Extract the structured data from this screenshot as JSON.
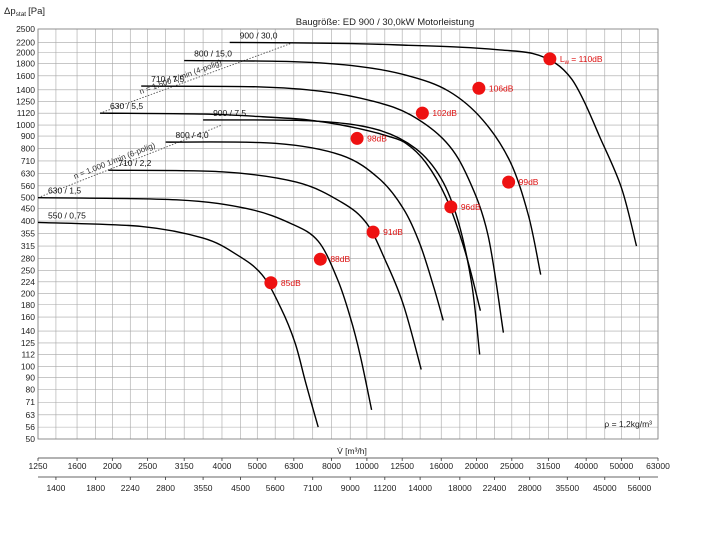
{
  "chart_data": {
    "type": "line",
    "title": "Baugröße: ED 900 / 30,0kW Motorleistung",
    "ylabel_main": "Δp",
    "ylabel_sub": "stat",
    "ylabel_unit": "[Pa]",
    "xlabel": "V̇ [m³/h]",
    "density_note": "ρ = 1,2kg/m³",
    "y_scale": "log",
    "x_scale": "log",
    "ylim": [
      50,
      2500
    ],
    "xlim": [
      1250,
      63000
    ],
    "grid": true,
    "y_ticks": [
      "2500",
      "2200",
      "2000",
      "1800",
      "1600",
      "1400",
      "1250",
      "1120",
      "1000",
      "900",
      "800",
      "710",
      "630",
      "560",
      "500",
      "450",
      "400",
      "355",
      "315",
      "280",
      "250",
      "224",
      "200",
      "180",
      "160",
      "140",
      "125",
      "112",
      "100",
      "90",
      "80",
      "71",
      "63",
      "56",
      "50"
    ],
    "x_ticks_top": [
      "1250",
      "1600",
      "2000",
      "2500",
      "3150",
      "4000",
      "5000",
      "6300",
      "8000",
      "10000",
      "12500",
      "16000",
      "20000",
      "25000",
      "31500",
      "40000",
      "50000",
      "63000"
    ],
    "x_ticks_bottom": [
      "1400",
      "1800",
      "2240",
      "2800",
      "3550",
      "4500",
      "5600",
      "7100",
      "9000",
      "11200",
      "14000",
      "18000",
      "22400",
      "28000",
      "35500",
      "45000",
      "56000"
    ],
    "speed_lines": [
      {
        "label": "n = 1.500 1/min (4-polig)",
        "x": [
          1850,
          6300
        ],
        "y": [
          1120,
          2200
        ]
      },
      {
        "label": "n = 1.000 1/min (6-polig)",
        "x": [
          1250,
          4000
        ],
        "y": [
          500,
          1000
        ]
      }
    ],
    "series": [
      {
        "name": "550 / 0,75",
        "x": [
          1250,
          2400,
          3550,
          4400,
          5150,
          5800,
          6350,
          6800,
          7350
        ],
        "y": [
          395,
          380,
          340,
          290,
          240,
          175,
          125,
          85,
          56
        ]
      },
      {
        "name": "630 / 1,5",
        "x": [
          1250,
          3000,
          4700,
          6200,
          7350,
          8300,
          9000,
          9600,
          10300
        ],
        "y": [
          500,
          490,
          450,
          390,
          330,
          230,
          160,
          110,
          66
        ]
      },
      {
        "name": "710 / 2,2",
        "x": [
          1950,
          4000,
          6400,
          8500,
          10000,
          11300,
          12600,
          14100
        ],
        "y": [
          650,
          640,
          580,
          480,
          390,
          270,
          180,
          97
        ]
      },
      {
        "name": "800 / 4,0",
        "x": [
          2800,
          5600,
          8500,
          10800,
          12600,
          14000,
          15300,
          16200
        ],
        "y": [
          850,
          840,
          750,
          600,
          450,
          320,
          210,
          155
        ]
      },
      {
        "name": "900 / 7,5",
        "x": [
          3550,
          7100,
          10600,
          13600,
          16000,
          17800,
          19400,
          20400
        ],
        "y": [
          1050,
          1040,
          960,
          800,
          600,
          400,
          220,
          112
        ]
      },
      {
        "name": "630 / 5,5",
        "x": [
          1850,
          3550,
          5300,
          6900,
          8500,
          10000,
          11400,
          12800,
          14500,
          16500,
          18600,
          20500
        ],
        "y": [
          1120,
          1110,
          1080,
          1050,
          1000,
          950,
          900,
          840,
          700,
          500,
          300,
          170
        ]
      },
      {
        "name": "710 / 7,5",
        "x": [
          2400,
          5000,
          7500,
          10500,
          13200,
          16500,
          19000,
          21500,
          23700
        ],
        "y": [
          1450,
          1440,
          1380,
          1250,
          1100,
          850,
          600,
          350,
          138
        ]
      },
      {
        "name": "800 / 15,0",
        "x": [
          3150,
          6300,
          9500,
          13000,
          16800,
          20800,
          24800,
          27800,
          30000
        ],
        "y": [
          1850,
          1830,
          1750,
          1600,
          1380,
          1050,
          700,
          420,
          240
        ]
      },
      {
        "name": "900 / 30,0",
        "x": [
          4200,
          8500,
          13000,
          18300,
          23000,
          28500,
          33000,
          36500,
          39500,
          43500,
          50000,
          55000
        ],
        "y": [
          2200,
          2180,
          2140,
          2100,
          2050,
          1980,
          1800,
          1550,
          1250,
          900,
          550,
          315
        ]
      }
    ],
    "noise_points": [
      {
        "label": "85dB",
        "x": 5450,
        "y": 222
      },
      {
        "label": "88dB",
        "x": 7450,
        "y": 278
      },
      {
        "label": "91dB",
        "x": 10400,
        "y": 360
      },
      {
        "label": "96dB",
        "x": 17000,
        "y": 458
      },
      {
        "label": "99dB",
        "x": 24500,
        "y": 580
      },
      {
        "label": "98dB",
        "x": 9400,
        "y": 880
      },
      {
        "label": "102dB",
        "x": 14200,
        "y": 1120
      },
      {
        "label": "106dB",
        "x": 20300,
        "y": 1420
      },
      {
        "label_main": "L",
        "label_sub": "w",
        "label_rest": " = 110dB",
        "x": 31800,
        "y": 1880
      }
    ],
    "colors": {
      "grid": "#a6a6a6",
      "curve": "#000000",
      "marker": "#ee1111",
      "marker_label": "#dd1111",
      "speed_line": "#555555"
    }
  }
}
